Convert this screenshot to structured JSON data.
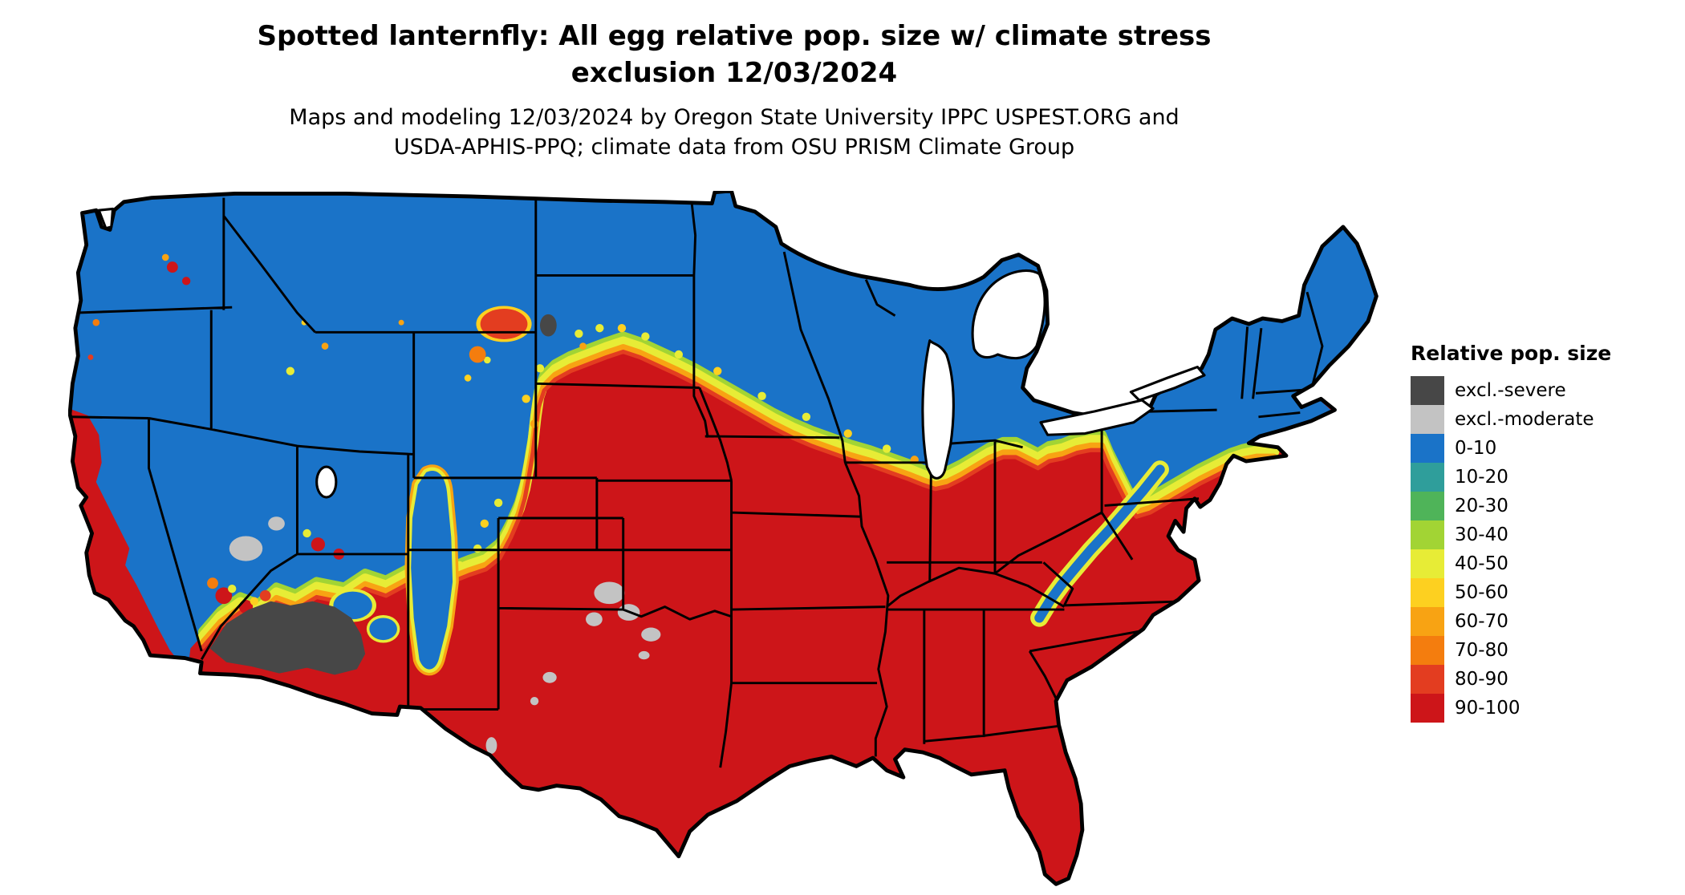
{
  "title": {
    "line1": "Spotted lanternfly: All egg relative pop. size w/ climate stress",
    "line2": "exclusion 12/03/2024"
  },
  "subtitle": {
    "line1": "Maps and modeling 12/03/2024 by Oregon State University IPPC USPEST.ORG and",
    "line2": "USDA-APHIS-PPQ; climate data from OSU PRISM Climate Group"
  },
  "legend": {
    "title": "Relative pop. size",
    "items": [
      {
        "label": "excl.-severe",
        "key": "excl_severe"
      },
      {
        "label": "excl.-moderate",
        "key": "excl_moderate"
      },
      {
        "label": "0-10",
        "key": "c0_10"
      },
      {
        "label": "10-20",
        "key": "c10_20"
      },
      {
        "label": "20-30",
        "key": "c20_30"
      },
      {
        "label": "30-40",
        "key": "c30_40"
      },
      {
        "label": "40-50",
        "key": "c40_50"
      },
      {
        "label": "50-60",
        "key": "c50_60"
      },
      {
        "label": "60-70",
        "key": "c60_70"
      },
      {
        "label": "70-80",
        "key": "c70_80"
      },
      {
        "label": "80-90",
        "key": "c80_90"
      },
      {
        "label": "90-100",
        "key": "c90_100"
      }
    ]
  },
  "colors": {
    "excl_severe": "#474747",
    "excl_moderate": "#c3c3c3",
    "c0_10": "#1a73c8",
    "c10_20": "#2f9e9b",
    "c20_30": "#4fb459",
    "c30_40": "#a2d434",
    "c40_50": "#e7ec36",
    "c50_60": "#fdd020",
    "c60_70": "#f8a313",
    "c70_80": "#f47d0e",
    "c80_90": "#e33d20",
    "c90_100": "#cd1519",
    "outline": "#000000",
    "water": "#ffffff"
  },
  "map_summary": {
    "type": "choropleth raster map",
    "region": "Continental United States with state boundaries",
    "north_fill": "0-10 (blue): Pacific Northwest, northern Rockies, northern plains, Great Lakes states, Northeast",
    "south_fill": "90-100 (red): Southwest deserts margins, southern plains, Midwest south of I-80, entire South and Atlantic coastal plain, Florida, Texas",
    "transition_band": "yellow-orange gradient running from northern Arizona/Utah border across Colorado front range, through South Dakota, southern Minnesota, northern Illinois, lower Michigan, northern Ohio and Pennsylvania to the New York City area",
    "excl_severe_areas": "southern Arizona and southeastern California desert (dark gray), Black Hills speck",
    "excl_moderate_areas": "Mojave/Death Valley patches, Texas panhandle and western Oklahoma patches, central and far-west Texas specks",
    "blue_pockets_in_red": "north-central New Mexico Rockies, Arizona highlands, Appalachian ridge through Pennsylvania-West Virginia-Virginia",
    "red_pockets_in_blue": "California coast and Central Valley, southern Nevada, Powder River Basin Wyoming, eastern Washington specks, southern Utah patches, coastal New England slivers",
    "water_features_white": "Great Lakes, Great Salt Lake, Puget Sound"
  }
}
